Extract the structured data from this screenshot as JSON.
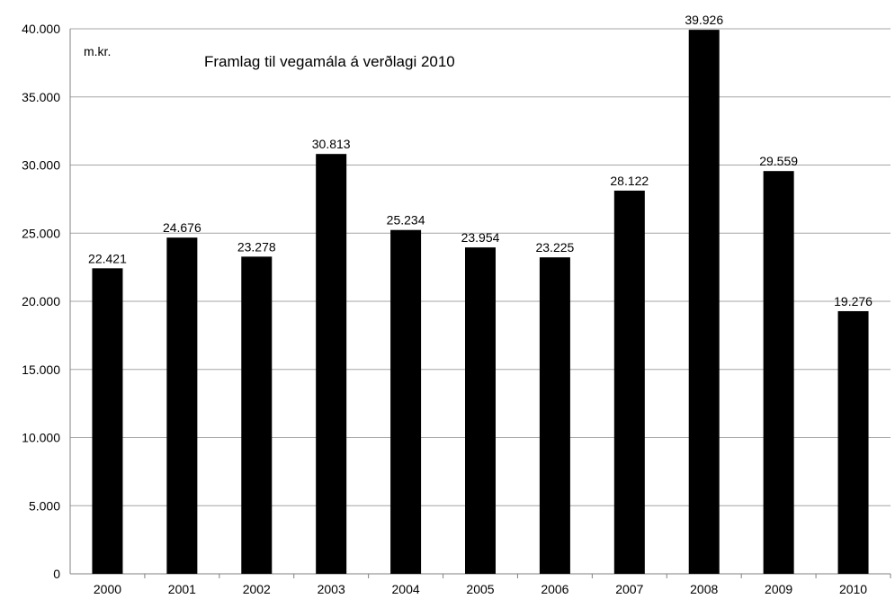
{
  "chart_data": {
    "type": "bar",
    "title": "Framlag til vegamála á verðlagi 2010",
    "unit_label": "m.kr.",
    "categories": [
      "2000",
      "2001",
      "2002",
      "2003",
      "2004",
      "2005",
      "2006",
      "2007",
      "2008",
      "2009",
      "2010"
    ],
    "values": [
      22421,
      24676,
      23278,
      30813,
      25234,
      23954,
      23225,
      28122,
      39926,
      29559,
      19276
    ],
    "value_labels": [
      "22.421",
      "24.676",
      "23.278",
      "30.813",
      "25.234",
      "23.954",
      "23.225",
      "28.122",
      "39.926",
      "29.559",
      "19.276"
    ],
    "ylim": [
      0,
      40000
    ],
    "yticks": [
      0,
      5000,
      10000,
      15000,
      20000,
      25000,
      30000,
      35000,
      40000
    ],
    "ytick_labels": [
      "0",
      "5.000",
      "10.000",
      "15.000",
      "20.000",
      "25.000",
      "30.000",
      "35.000",
      "40.000"
    ],
    "xlabel": "",
    "ylabel": "",
    "grid": true,
    "legend": "none",
    "bar_color": "#000000",
    "grid_color": "#a6a6a6"
  }
}
